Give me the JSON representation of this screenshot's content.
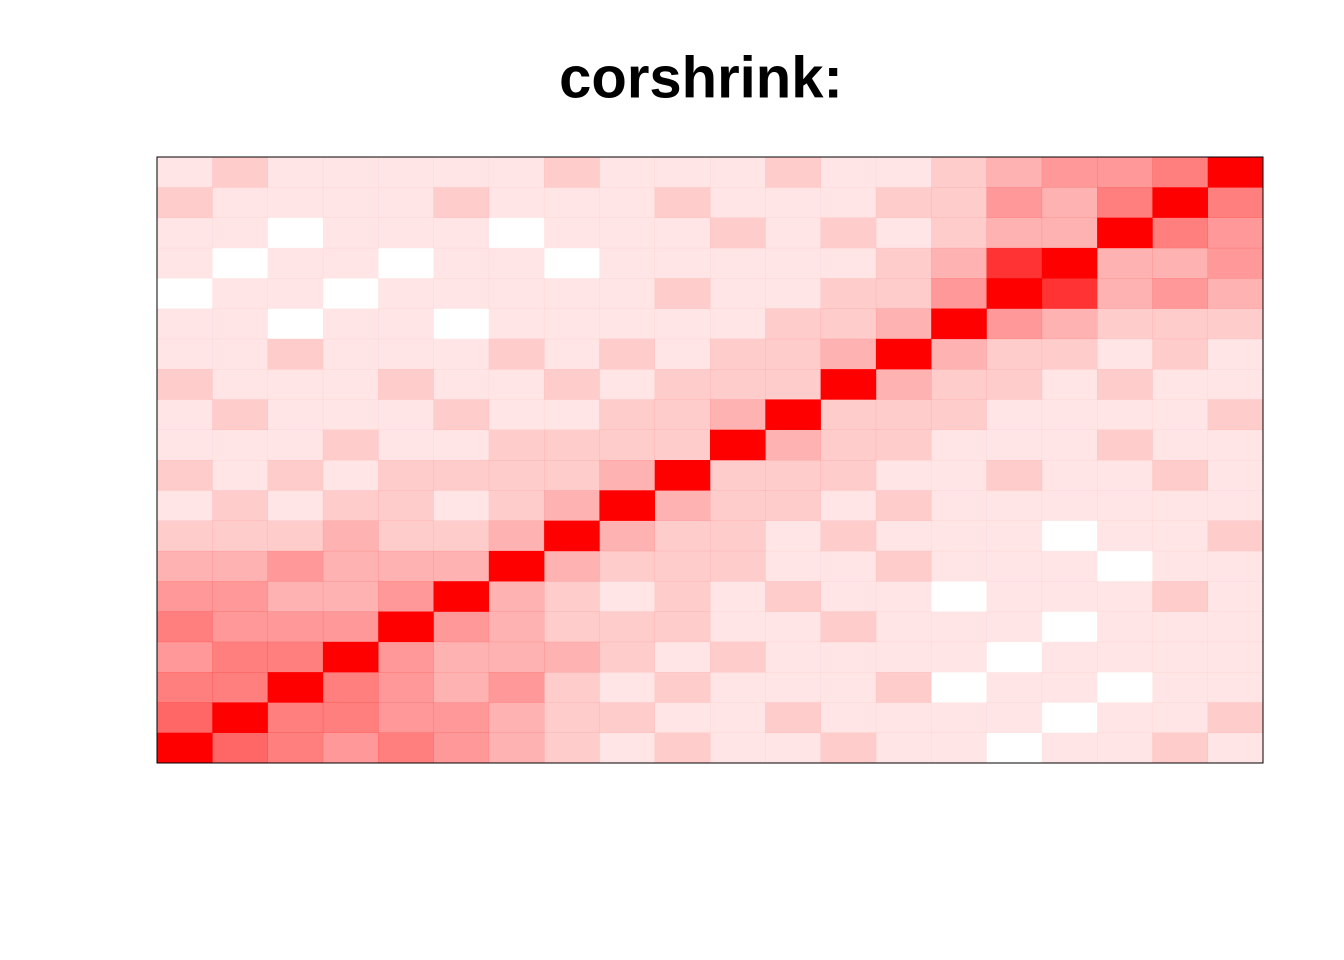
{
  "chart_data": {
    "type": "heatmap",
    "title": "corshrink:",
    "color": "#ff0000",
    "zlim": [
      0,
      1
    ],
    "z": [
      [
        1,
        0.6,
        0.5,
        0.4,
        0.5,
        0.4,
        0.3,
        0.2,
        0.1,
        0.2,
        0.1,
        0.1,
        0.2,
        0.1,
        0.1,
        0,
        0.1,
        0.1,
        0.2,
        0.1
      ],
      [
        0.6,
        1,
        0.5,
        0.5,
        0.4,
        0.4,
        0.3,
        0.2,
        0.2,
        0.1,
        0.1,
        0.2,
        0.1,
        0.1,
        0.1,
        0.1,
        0,
        0.1,
        0.1,
        0.2
      ],
      [
        0.5,
        0.5,
        1,
        0.5,
        0.4,
        0.3,
        0.4,
        0.2,
        0.1,
        0.2,
        0.1,
        0.1,
        0.1,
        0.2,
        0,
        0.1,
        0.1,
        0,
        0.1,
        0.1
      ],
      [
        0.4,
        0.5,
        0.5,
        1,
        0.4,
        0.3,
        0.3,
        0.3,
        0.2,
        0.1,
        0.2,
        0.1,
        0.1,
        0.1,
        0.1,
        0,
        0.1,
        0.1,
        0.1,
        0.1
      ],
      [
        0.5,
        0.4,
        0.4,
        0.4,
        1,
        0.4,
        0.3,
        0.2,
        0.2,
        0.2,
        0.1,
        0.1,
        0.2,
        0.1,
        0.1,
        0.1,
        0,
        0.1,
        0.1,
        0.1
      ],
      [
        0.4,
        0.4,
        0.3,
        0.3,
        0.4,
        1,
        0.3,
        0.2,
        0.1,
        0.2,
        0.1,
        0.2,
        0.1,
        0.1,
        0,
        0.1,
        0.1,
        0.1,
        0.2,
        0.1
      ],
      [
        0.3,
        0.3,
        0.4,
        0.3,
        0.3,
        0.3,
        1,
        0.3,
        0.2,
        0.2,
        0.2,
        0.1,
        0.1,
        0.2,
        0.1,
        0.1,
        0.1,
        0,
        0.1,
        0.1
      ],
      [
        0.2,
        0.2,
        0.2,
        0.3,
        0.2,
        0.2,
        0.3,
        1,
        0.3,
        0.2,
        0.2,
        0.1,
        0.2,
        0.1,
        0.1,
        0.1,
        0,
        0.1,
        0.1,
        0.2
      ],
      [
        0.1,
        0.2,
        0.1,
        0.2,
        0.2,
        0.1,
        0.2,
        0.3,
        1,
        0.3,
        0.2,
        0.2,
        0.1,
        0.2,
        0.1,
        0.1,
        0.1,
        0.1,
        0.1,
        0.1
      ],
      [
        0.2,
        0.1,
        0.2,
        0.1,
        0.2,
        0.2,
        0.2,
        0.2,
        0.3,
        1,
        0.2,
        0.2,
        0.2,
        0.1,
        0.1,
        0.2,
        0.1,
        0.1,
        0.2,
        0.1
      ],
      [
        0.1,
        0.1,
        0.1,
        0.2,
        0.1,
        0.1,
        0.2,
        0.2,
        0.2,
        0.2,
        1,
        0.3,
        0.2,
        0.2,
        0.1,
        0.1,
        0.1,
        0.2,
        0.1,
        0.1
      ],
      [
        0.1,
        0.2,
        0.1,
        0.1,
        0.1,
        0.2,
        0.1,
        0.1,
        0.2,
        0.2,
        0.3,
        1,
        0.2,
        0.2,
        0.2,
        0.1,
        0.1,
        0.1,
        0.1,
        0.2
      ],
      [
        0.2,
        0.1,
        0.1,
        0.1,
        0.2,
        0.1,
        0.1,
        0.2,
        0.1,
        0.2,
        0.2,
        0.2,
        1,
        0.3,
        0.2,
        0.2,
        0.1,
        0.2,
        0.1,
        0.1
      ],
      [
        0.1,
        0.1,
        0.2,
        0.1,
        0.1,
        0.1,
        0.2,
        0.1,
        0.2,
        0.1,
        0.2,
        0.2,
        0.3,
        1,
        0.3,
        0.2,
        0.2,
        0.1,
        0.2,
        0.1
      ],
      [
        0.1,
        0.1,
        0,
        0.1,
        0.1,
        0,
        0.1,
        0.1,
        0.1,
        0.1,
        0.1,
        0.2,
        0.2,
        0.3,
        1,
        0.4,
        0.3,
        0.2,
        0.2,
        0.2
      ],
      [
        0,
        0.1,
        0.1,
        0,
        0.1,
        0.1,
        0.1,
        0.1,
        0.1,
        0.2,
        0.1,
        0.1,
        0.2,
        0.2,
        0.4,
        1,
        0.8,
        0.3,
        0.4,
        0.3
      ],
      [
        0.1,
        0,
        0.1,
        0.1,
        0,
        0.1,
        0.1,
        0,
        0.1,
        0.1,
        0.1,
        0.1,
        0.1,
        0.2,
        0.3,
        0.8,
        1,
        0.3,
        0.3,
        0.4
      ],
      [
        0.1,
        0.1,
        0,
        0.1,
        0.1,
        0.1,
        0,
        0.1,
        0.1,
        0.1,
        0.2,
        0.1,
        0.2,
        0.1,
        0.2,
        0.3,
        0.3,
        1,
        0.5,
        0.4
      ],
      [
        0.2,
        0.1,
        0.1,
        0.1,
        0.1,
        0.2,
        0.1,
        0.1,
        0.1,
        0.2,
        0.1,
        0.1,
        0.1,
        0.2,
        0.2,
        0.4,
        0.3,
        0.5,
        1,
        0.5
      ],
      [
        0.1,
        0.2,
        0.1,
        0.1,
        0.1,
        0.1,
        0.1,
        0.2,
        0.1,
        0.1,
        0.1,
        0.2,
        0.1,
        0.1,
        0.2,
        0.3,
        0.4,
        0.4,
        0.5,
        1
      ]
    ]
  }
}
